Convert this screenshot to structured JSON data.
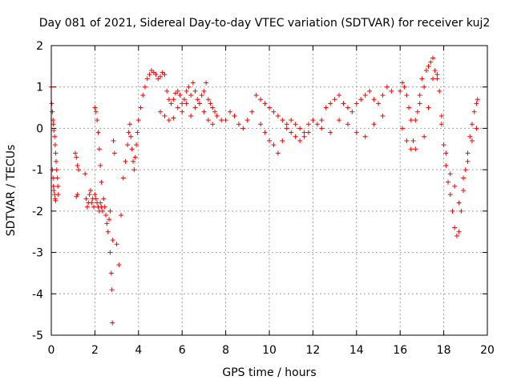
{
  "chart_data": {
    "type": "scatter",
    "title": "Day 081 of 2021, Sidereal Day-to-day VTEC variation (SDTVAR) for receiver kuj2",
    "xlabel": "GPS time / hours",
    "ylabel": "SDTVAR / TECUs",
    "xlim": [
      0,
      20
    ],
    "ylim": [
      -5,
      2
    ],
    "xticks": [
      0,
      2,
      4,
      6,
      8,
      10,
      12,
      14,
      16,
      18,
      20
    ],
    "yticks": [
      -5,
      -4,
      -3,
      -2,
      -1,
      0,
      1,
      2
    ],
    "grid": true,
    "marker": "+",
    "color": "#ff0000",
    "series": [
      {
        "name": "SDTVAR",
        "x": [
          0.0,
          0.02,
          0.05,
          0.08,
          0.1,
          0.12,
          0.15,
          0.18,
          0.2,
          0.22,
          0.25,
          0.28,
          0.3,
          0.32,
          0.05,
          0.08,
          0.1,
          0.12,
          0.15,
          0.18,
          0.2,
          1.1,
          1.15,
          1.2,
          1.25,
          1.2,
          1.15,
          1.55,
          1.6,
          1.65,
          1.7,
          1.75,
          1.8,
          1.85,
          1.9,
          1.95,
          2.0,
          2.05,
          2.1,
          2.15,
          2.2,
          2.25,
          2.3,
          2.35,
          2.4,
          2.45,
          2.5,
          2.55,
          2.6,
          2.65,
          2.7,
          2.0,
          2.05,
          2.1,
          2.15,
          2.2,
          2.25,
          2.3,
          2.7,
          2.75,
          2.78,
          2.8,
          2.82,
          2.85,
          2.9,
          3.0,
          3.1,
          3.2,
          3.3,
          3.4,
          3.5,
          3.55,
          3.6,
          3.65,
          3.7,
          3.75,
          3.8,
          3.85,
          3.9,
          3.95,
          4.0,
          4.1,
          4.2,
          4.3,
          4.4,
          4.5,
          4.6,
          4.7,
          4.8,
          4.9,
          5.0,
          5.1,
          5.2,
          5.3,
          5.4,
          5.5,
          5.6,
          5.7,
          5.8,
          5.9,
          6.0,
          6.1,
          6.2,
          6.3,
          6.4,
          6.5,
          6.6,
          6.7,
          6.8,
          6.9,
          7.0,
          7.1,
          7.2,
          7.3,
          7.4,
          7.5,
          5.0,
          5.2,
          5.4,
          5.6,
          5.8,
          6.0,
          6.2,
          6.4,
          6.6,
          6.8,
          7.0,
          7.2,
          7.4,
          7.6,
          7.8,
          8.0,
          8.2,
          8.4,
          8.6,
          8.8,
          9.0,
          9.2,
          9.4,
          9.6,
          9.8,
          10.0,
          10.2,
          10.4,
          10.6,
          10.8,
          11.0,
          11.2,
          11.4,
          11.6,
          11.8,
          12.0,
          9.6,
          9.8,
          10.0,
          10.2,
          10.4,
          10.6,
          10.8,
          11.0,
          11.2,
          11.4,
          11.6,
          11.8,
          12.2,
          12.4,
          12.6,
          12.8,
          13.0,
          13.2,
          13.4,
          13.6,
          13.8,
          14.0,
          14.2,
          14.4,
          14.6,
          14.8,
          15.0,
          15.2,
          15.4,
          15.6,
          12.4,
          12.8,
          13.2,
          13.6,
          14.0,
          14.4,
          14.8,
          15.2,
          16.0,
          16.1,
          16.2,
          16.3,
          16.4,
          16.5,
          16.6,
          16.7,
          16.8,
          16.9,
          17.0,
          17.1,
          17.2,
          17.3,
          17.4,
          17.5,
          17.6,
          17.7,
          17.8,
          17.9,
          18.0,
          18.1,
          18.2,
          18.3,
          18.4,
          18.5,
          18.6,
          18.7,
          18.8,
          18.9,
          19.0,
          19.1,
          19.2,
          19.3,
          19.4,
          19.5,
          19.55,
          16.1,
          16.3,
          16.5,
          16.7,
          16.9,
          17.1,
          17.3,
          17.5,
          17.7,
          17.9,
          18.1,
          18.3,
          18.5,
          18.7,
          18.9,
          19.1,
          19.3,
          19.5
        ],
        "y": [
          1.0,
          0.6,
          0.4,
          0.2,
          0.1,
          -0.05,
          -0.2,
          -0.4,
          -0.6,
          -0.8,
          -1.0,
          -1.2,
          -1.4,
          -1.6,
          -1.0,
          -1.2,
          -1.4,
          -1.5,
          -1.6,
          -1.7,
          -1.75,
          -0.6,
          -0.7,
          -0.9,
          -1.0,
          -1.6,
          -1.65,
          -1.1,
          -1.7,
          -1.9,
          -1.8,
          -1.6,
          -1.5,
          -1.8,
          -1.7,
          -1.9,
          -1.6,
          -1.7,
          -1.8,
          -1.9,
          -2.0,
          -1.8,
          -1.9,
          -2.0,
          -1.7,
          -1.9,
          -2.1,
          -2.3,
          -2.5,
          -2.2,
          -2.0,
          0.5,
          0.4,
          0.2,
          -0.1,
          -0.5,
          -0.9,
          -1.3,
          -3.0,
          -3.5,
          -3.9,
          -4.7,
          -2.7,
          -0.3,
          -0.6,
          -2.8,
          -3.3,
          -2.1,
          -1.2,
          -0.8,
          -0.4,
          -0.1,
          0.1,
          -0.2,
          -0.5,
          -0.8,
          -1.0,
          -0.7,
          -0.4,
          -0.1,
          0.2,
          0.5,
          0.8,
          1.0,
          1.2,
          1.3,
          1.4,
          1.35,
          1.3,
          1.2,
          1.25,
          1.35,
          1.3,
          0.9,
          0.7,
          0.6,
          0.7,
          0.85,
          0.9,
          0.8,
          0.6,
          0.7,
          0.9,
          1.0,
          0.8,
          1.1,
          0.9,
          0.7,
          0.6,
          0.8,
          0.9,
          1.1,
          0.7,
          0.6,
          0.5,
          0.4,
          0.4,
          0.3,
          0.2,
          0.25,
          0.5,
          0.4,
          0.6,
          0.3,
          0.5,
          0.6,
          0.4,
          0.2,
          0.1,
          0.3,
          0.2,
          0.2,
          0.4,
          0.3,
          0.1,
          0.0,
          0.2,
          0.4,
          0.8,
          0.7,
          0.6,
          0.5,
          0.4,
          0.3,
          0.2,
          0.1,
          0.2,
          0.1,
          0.0,
          -0.1,
          0.1,
          0.2,
          0.1,
          -0.1,
          -0.3,
          -0.4,
          -0.6,
          -0.3,
          0.0,
          -0.1,
          -0.2,
          -0.3,
          -0.2,
          -0.1,
          0.1,
          0.2,
          0.5,
          0.6,
          0.7,
          0.8,
          0.6,
          0.5,
          0.4,
          0.6,
          0.7,
          0.8,
          0.9,
          0.7,
          0.6,
          0.8,
          1.0,
          0.9,
          0.0,
          -0.1,
          0.2,
          0.1,
          -0.1,
          -0.2,
          0.1,
          0.3,
          0.9,
          1.1,
          1.0,
          0.8,
          0.5,
          0.2,
          -0.3,
          -0.5,
          0.4,
          0.8,
          1.2,
          1.0,
          1.4,
          1.5,
          1.6,
          1.7,
          1.4,
          1.2,
          0.9,
          0.3,
          -0.4,
          -0.9,
          -1.3,
          -1.6,
          -2.0,
          -2.4,
          -2.6,
          -2.5,
          -2.0,
          -1.5,
          -1.0,
          -0.6,
          -0.2,
          0.1,
          0.4,
          0.6,
          0.7,
          0.0,
          -0.3,
          -0.5,
          0.2,
          0.6,
          -0.2,
          0.5,
          1.2,
          1.3,
          0.1,
          -0.6,
          -1.1,
          -1.4,
          -1.8,
          -1.2,
          -0.8,
          -0.3,
          0.0
        ]
      }
    ]
  }
}
